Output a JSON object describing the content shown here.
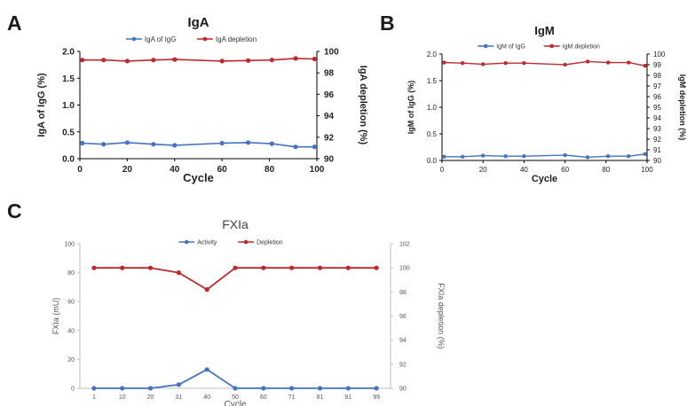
{
  "panels": {
    "a": "A",
    "b": "B",
    "c": "C"
  },
  "chart_data": [
    {
      "type": "line",
      "panel": "A",
      "title": "IgA",
      "xlabel": "Cycle",
      "ylabel": "IgA of IgG (%)",
      "y2label": "IgA depletion (%)",
      "xlim": [
        0,
        100
      ],
      "xticks": [
        "0",
        "20",
        "40",
        "60",
        "80",
        "100"
      ],
      "ylim": [
        0,
        2.0
      ],
      "yticks": [
        "0.0",
        "0.5",
        "1.0",
        "1.5",
        "2.0"
      ],
      "y2lim": [
        90,
        100
      ],
      "y2ticks": [
        "90",
        "92",
        "94",
        "96",
        "98",
        "100"
      ],
      "legend_position": "top",
      "grid": false,
      "x": [
        1,
        10,
        20,
        31,
        40,
        60,
        71,
        81,
        91,
        99
      ],
      "series": [
        {
          "name": "IgA of IgG",
          "axis": "left",
          "color": "#4472C4",
          "values": [
            0.29,
            0.27,
            0.3,
            0.27,
            0.25,
            0.29,
            0.3,
            0.28,
            0.22,
            0.22
          ]
        },
        {
          "name": "IgA depletion",
          "axis": "right",
          "color": "#C0282D",
          "values": [
            99.2,
            99.2,
            99.1,
            99.2,
            99.25,
            99.1,
            99.15,
            99.2,
            99.35,
            99.3
          ]
        }
      ]
    },
    {
      "type": "line",
      "panel": "B",
      "title": "IgM",
      "xlabel": "Cycle",
      "ylabel": "IgM of IgG (%)",
      "y2label": "IgM depletion (%)",
      "xlim": [
        0,
        100
      ],
      "xticks": [
        "0",
        "20",
        "40",
        "60",
        "80",
        "100"
      ],
      "ylim": [
        0,
        2.0
      ],
      "yticks": [
        "0.0",
        "0.5",
        "1.0",
        "1.5",
        "2.0"
      ],
      "y2lim": [
        90,
        100
      ],
      "y2ticks": [
        "90",
        "91",
        "92",
        "93",
        "94",
        "95",
        "96",
        "97",
        "98",
        "99",
        "100"
      ],
      "legend_position": "top",
      "grid": false,
      "x": [
        1,
        10,
        20,
        31,
        40,
        60,
        71,
        81,
        91,
        99
      ],
      "series": [
        {
          "name": "IgM of IgG",
          "axis": "left",
          "color": "#4472C4",
          "values": [
            0.07,
            0.07,
            0.09,
            0.08,
            0.08,
            0.1,
            0.06,
            0.08,
            0.08,
            0.12
          ]
        },
        {
          "name": "IgM depletion",
          "axis": "right",
          "color": "#C0282D",
          "values": [
            99.2,
            99.15,
            99.05,
            99.15,
            99.15,
            99.0,
            99.3,
            99.2,
            99.2,
            98.9
          ]
        }
      ]
    },
    {
      "type": "line",
      "panel": "C",
      "title": "FXIa",
      "xlabel": "Cycle",
      "ylabel": "FXIa (mU)",
      "y2label": "FXIa depletion (%)",
      "categories": [
        "1",
        "10",
        "20",
        "31",
        "40",
        "50",
        "60",
        "71",
        "81",
        "91",
        "99"
      ],
      "ylim": [
        0,
        100
      ],
      "yticks": [
        "0",
        "20",
        "40",
        "60",
        "80",
        "100"
      ],
      "y2lim": [
        90,
        102
      ],
      "y2ticks": [
        "90",
        "92",
        "94",
        "96",
        "98",
        "100",
        "102"
      ],
      "legend_position": "top",
      "grid": false,
      "series": [
        {
          "name": "Activity",
          "axis": "left",
          "color": "#4472C4",
          "values": [
            0,
            0,
            0,
            2.5,
            13,
            0,
            0,
            0,
            0,
            0,
            0
          ]
        },
        {
          "name": "Depletion",
          "axis": "right",
          "color": "#C0282D",
          "values": [
            100,
            100,
            100,
            99.6,
            98.2,
            100,
            100,
            100,
            100,
            100,
            100
          ]
        }
      ]
    }
  ]
}
